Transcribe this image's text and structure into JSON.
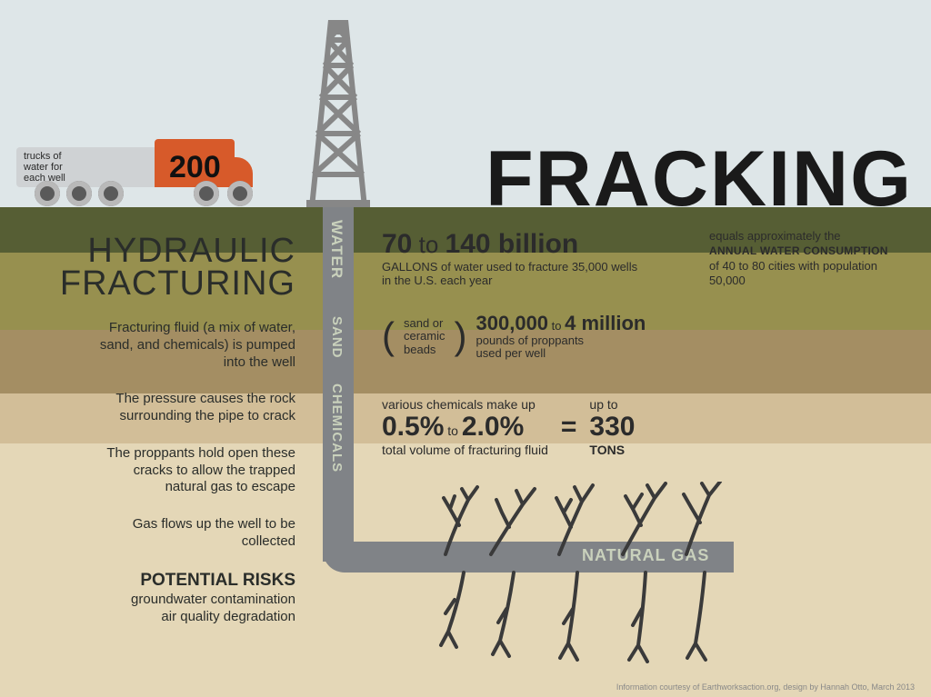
{
  "colors": {
    "sky": "#dee6e8",
    "layer1": "#565e34",
    "layer2": "#97904f",
    "layer3": "#a48e63",
    "layer4": "#d2be98",
    "layer5": "#e4d7b7",
    "pipe": "#808387",
    "pipe_label": "#c9d1bc",
    "title": "#1a1a1a",
    "truck_cab": "#d75a2a",
    "truck_tank": "#cfd2d4",
    "text_dark": "#2a2d2a",
    "crack": "#3a3a3a"
  },
  "title": "FRACKING",
  "title_fontsize": 86,
  "truck": {
    "label": "trucks of\nwater for\neach well",
    "number": "200"
  },
  "pipe_labels": {
    "water": "WATER",
    "sand": "SAND",
    "chemicals": "CHEMICALS",
    "gas": "NATURAL GAS"
  },
  "left": {
    "heading_line1": "HYDRAULIC",
    "heading_line2": "FRACTURING",
    "paras": [
      "Fracturing fluid (a mix of water, sand, and chemicals) is pumped into the well",
      "The pressure causes the rock surrounding the pipe to crack",
      "The proppants hold open these cracks to allow the trapped natural gas to escape",
      "Gas flows up the well to be collected"
    ],
    "risks_heading": "POTENTIAL RISKS",
    "risks_line1": "groundwater contamination",
    "risks_line2": "air quality degradation"
  },
  "stats": {
    "water": {
      "value_a": "70",
      "connector": " to ",
      "value_b": "140 billion",
      "sub": "GALLONS of water used to fracture 35,000 wells in the U.S. each year",
      "compare_pre": "equals approximately the",
      "compare_bold": "ANNUAL WATER CONSUMPTION",
      "compare_post": "of 40 to 80 cities with population 50,000"
    },
    "proppants": {
      "paren_l1": "sand or",
      "paren_l2": "ceramic",
      "paren_l3": "beads",
      "value_a": "300,000",
      "connector": " to ",
      "value_b": "4 million",
      "sub_l1": "pounds of proppants",
      "sub_l2": "used per well"
    },
    "chemicals": {
      "pre": "various chemicals make up",
      "value_a": "0.5%",
      "connector": " to ",
      "value_b": "2.0%",
      "sub": "total volume of fracturing fluid",
      "eq_pre": "up to",
      "eq_val": "330",
      "eq_unit": "TONS"
    }
  },
  "credit": "Information courtesy of Earthworksaction.org, design by Hannah Otto, March 2013"
}
